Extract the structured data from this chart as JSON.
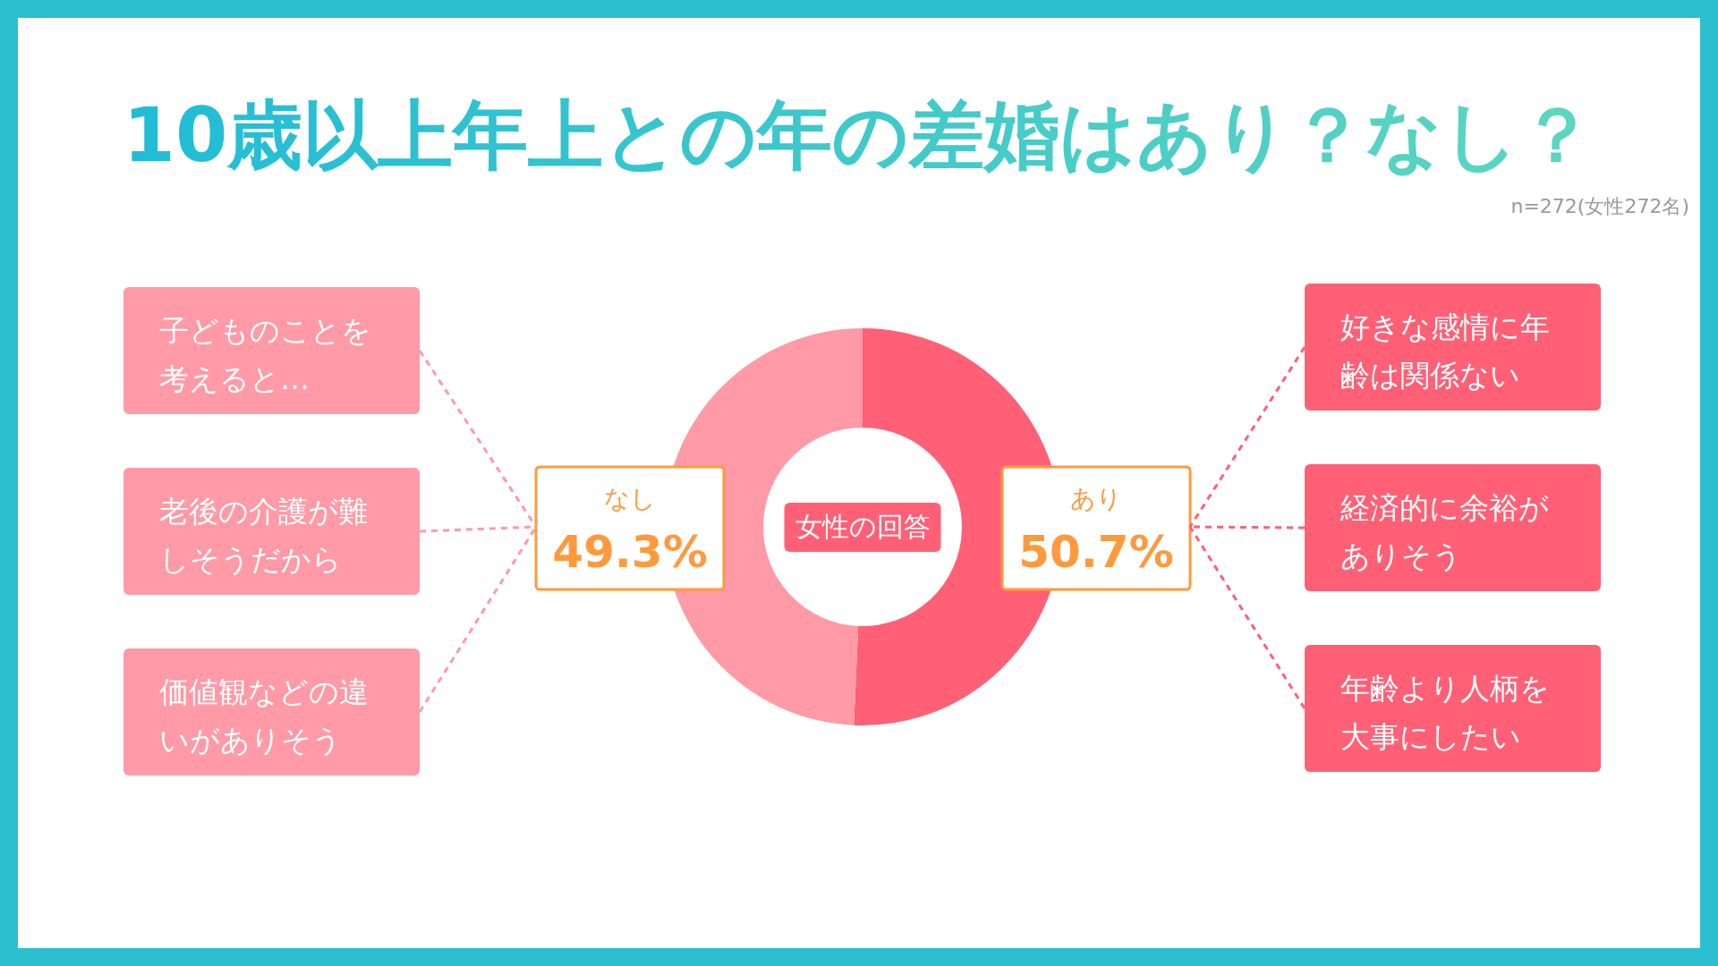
{
  "chart_data": {
    "type": "donut",
    "title": "10歳以上年上との年の差婚はあり？なし？",
    "subtitle": "n=272(女性272名)",
    "categories": [
      "あり",
      "なし"
    ],
    "values": [
      50.7,
      49.3
    ],
    "colors": [
      "#ff6076",
      "#ff9aa6"
    ],
    "value_labels": [
      "50.7%",
      "49.3%"
    ],
    "legend_title": "女性の回答",
    "annotations": [
      "子どものことを考えると…",
      "老後の介護が難しそうだから",
      "価値観などの違いがありそう",
      "好きな感情に年齢は関係ない",
      "経済的に余裕がありそう",
      "年齢より人柄を大事にしたい"
    ]
  }
}
